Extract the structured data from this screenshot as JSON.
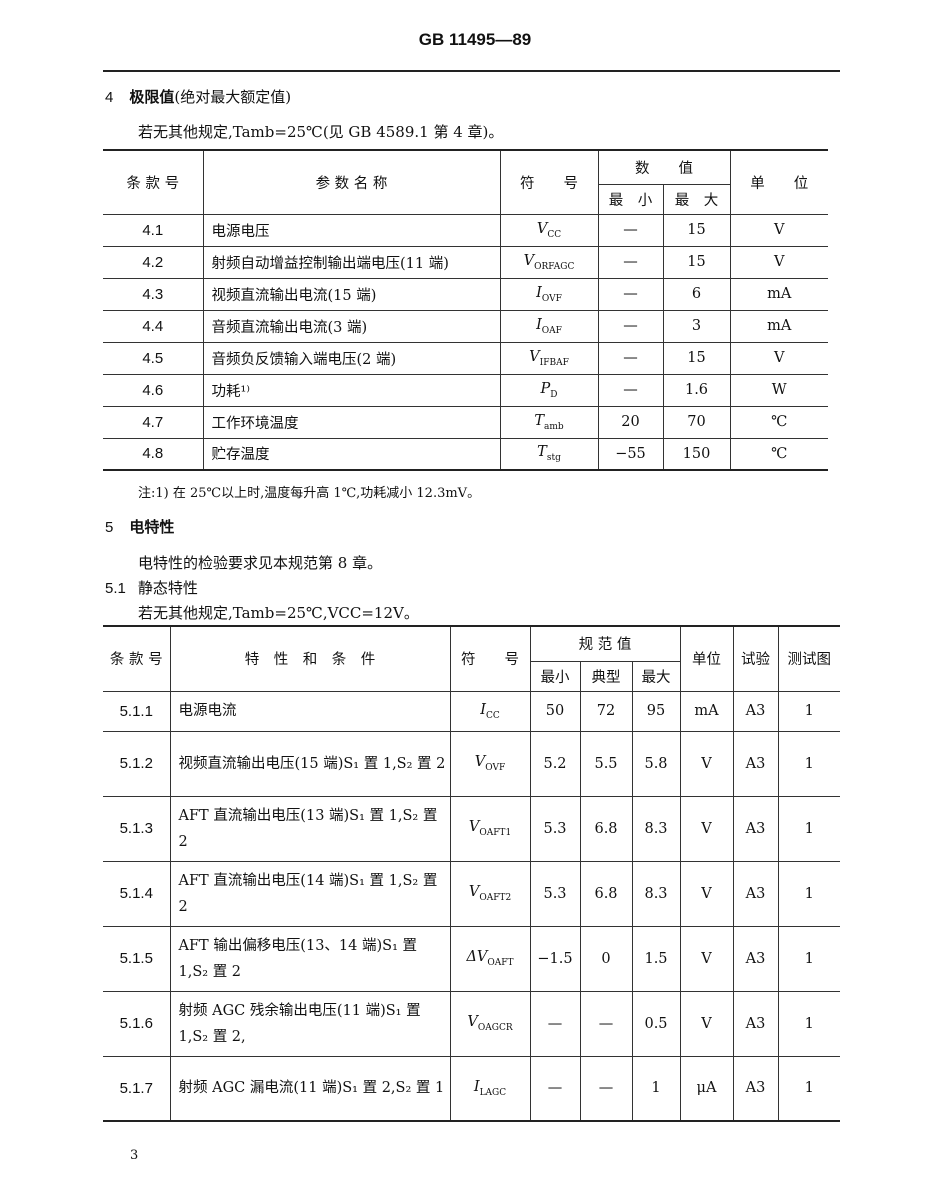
{
  "header": {
    "title": "GB 11495—89"
  },
  "section4": {
    "number": "4",
    "title": "极限值",
    "title_suffix": "(绝对最大额定值)",
    "condition": "若无其他规定,Tamb=25℃(见 GB 4589.1 第 4 章)。"
  },
  "table1": {
    "headers": {
      "clause": "条 款 号",
      "param": "参 数 名 称",
      "symbol": "符　　号",
      "value": "数　　值",
      "min": "最　小",
      "max": "最　大",
      "unit": "单　　位"
    },
    "rows": [
      {
        "clause": "4.1",
        "param": "电源电压",
        "sym": "V",
        "sub": "CC",
        "min": "—",
        "max": "15",
        "unit": "V"
      },
      {
        "clause": "4.2",
        "param": "射频自动增益控制输出端电压(11 端)",
        "sym": "V",
        "sub": "ORFAGC",
        "min": "—",
        "max": "15",
        "unit": "V"
      },
      {
        "clause": "4.3",
        "param": "视频直流输出电流(15 端)",
        "sym": "I",
        "sub": "OVF",
        "min": "—",
        "max": "6",
        "unit": "mA"
      },
      {
        "clause": "4.4",
        "param": "音频直流输出电流(3 端)",
        "sym": "I",
        "sub": "OAF",
        "min": "—",
        "max": "3",
        "unit": "mA"
      },
      {
        "clause": "4.5",
        "param": "音频负反馈输入端电压(2 端)",
        "sym": "V",
        "sub": "IFBAF",
        "min": "—",
        "max": "15",
        "unit": "V"
      },
      {
        "clause": "4.6",
        "param": "功耗¹⁾",
        "sym": "P",
        "sub": "D",
        "min": "—",
        "max": "1.6",
        "unit": "W"
      },
      {
        "clause": "4.7",
        "param": "工作环境温度",
        "sym": "T",
        "sub": "amb",
        "min": "20",
        "max": "70",
        "unit": "℃"
      },
      {
        "clause": "4.8",
        "param": "贮存温度",
        "sym": "T",
        "sub": "stg",
        "min": "−55",
        "max": "150",
        "unit": "℃"
      }
    ],
    "footnote": "注:1) 在 25℃以上时,温度每升高 1℃,功耗减小 12.3mV。"
  },
  "section5": {
    "number": "5",
    "title": "电特性",
    "text": "电特性的检验要求见本规范第 8 章。",
    "sub_number": "5.1",
    "sub_title": "静态特性",
    "condition": "若无其他规定,Tamb=25℃,VCC=12V。"
  },
  "table2": {
    "headers": {
      "clause": "条 款 号",
      "param": "特　性　和　条　件",
      "symbol": "符　　号",
      "spec": "规 范 值",
      "min": "最小",
      "typ": "典型",
      "max": "最大",
      "unit": "单位",
      "test": "试验",
      "fig": "测试图"
    },
    "rows": [
      {
        "clause": "5.1.1",
        "param": "电源电流",
        "sym": "I",
        "sub": "CC",
        "min": "50",
        "typ": "72",
        "max": "95",
        "unit": "mA",
        "test": "A3",
        "fig": "1"
      },
      {
        "clause": "5.1.2",
        "param": "视频直流输出电压(15 端)S₁ 置 1,S₂ 置 2",
        "sym": "V",
        "sub": "OVF",
        "min": "5.2",
        "typ": "5.5",
        "max": "5.8",
        "unit": "V",
        "test": "A3",
        "fig": "1"
      },
      {
        "clause": "5.1.3",
        "param": "AFT 直流输出电压(13 端)S₁ 置 1,S₂ 置 2",
        "sym": "V",
        "sub": "OAFT1",
        "min": "5.3",
        "typ": "6.8",
        "max": "8.3",
        "unit": "V",
        "test": "A3",
        "fig": "1"
      },
      {
        "clause": "5.1.4",
        "param": "AFT 直流输出电压(14 端)S₁ 置 1,S₂ 置 2",
        "sym": "V",
        "sub": "OAFT2",
        "min": "5.3",
        "typ": "6.8",
        "max": "8.3",
        "unit": "V",
        "test": "A3",
        "fig": "1"
      },
      {
        "clause": "5.1.5",
        "param": "AFT 输出偏移电压(13、14 端)S₁ 置 1,S₂ 置 2",
        "sym": "ΔV",
        "sub": "OAFT",
        "min": "−1.5",
        "typ": "0",
        "max": "1.5",
        "unit": "V",
        "test": "A3",
        "fig": "1"
      },
      {
        "clause": "5.1.6",
        "param": "射频 AGC 残余输出电压(11 端)S₁ 置 1,S₂ 置 2,",
        "sym": "V",
        "sub": "OAGCR",
        "min": "—",
        "typ": "—",
        "max": "0.5",
        "unit": "V",
        "test": "A3",
        "fig": "1"
      },
      {
        "clause": "5.1.7",
        "param": "射频 AGC 漏电流(11 端)S₁ 置 2,S₂ 置 1",
        "sym": "I",
        "sub": "LAGC",
        "min": "—",
        "typ": "—",
        "max": "1",
        "unit": "μA",
        "test": "A3",
        "fig": "1"
      }
    ]
  },
  "footer": {
    "page_number": "3"
  }
}
